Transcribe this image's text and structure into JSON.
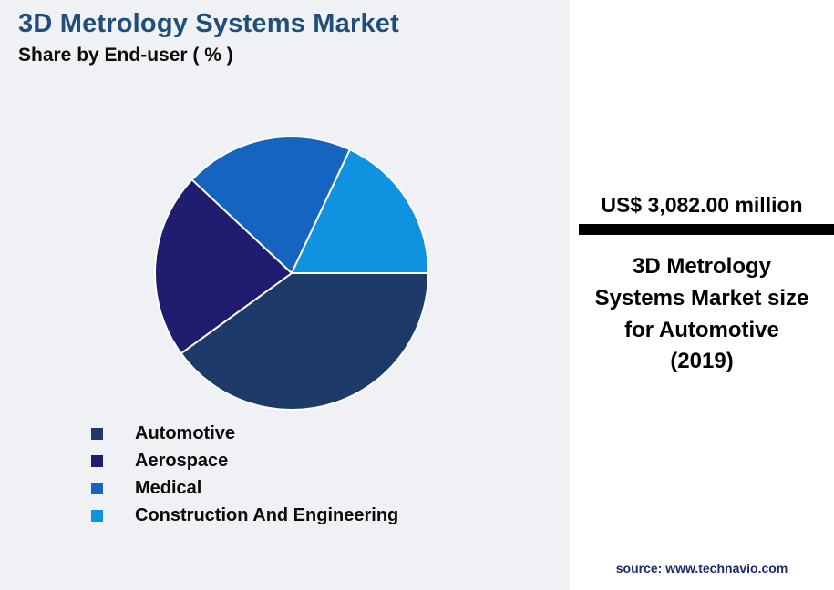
{
  "header": {
    "title": "3D Metrology Systems Market",
    "subtitle": "Share by End-user ( % )"
  },
  "chart_data": {
    "type": "pie",
    "title": "3D Metrology Systems Market",
    "subtitle": "Share by End-user ( % )",
    "unit": "%",
    "legend_position": "bottom-left",
    "start_angle_deg": 0,
    "direction": "clockwise",
    "slices": [
      {
        "label": "Automotive",
        "value": 40,
        "color": "#1e3a68"
      },
      {
        "label": "Aerospace",
        "value": 22,
        "color": "#201d71"
      },
      {
        "label": "Medical",
        "value": 20,
        "color": "#1565c0"
      },
      {
        "label": "Construction And Engineering",
        "value": 18,
        "color": "#0f93e0"
      }
    ]
  },
  "side_panel": {
    "value": "US$ 3,082.00 million",
    "caption": "3D Metrology Systems Market size for Automotive (2019)",
    "source": "source: www.technavio.com"
  },
  "colors": {
    "background_left": "#eff1f4",
    "background_panel": "#ffffff",
    "title": "#1e4e79",
    "divider": "#000000",
    "source_text": "#1b2b6b",
    "slice_separator": "#ffffff"
  }
}
